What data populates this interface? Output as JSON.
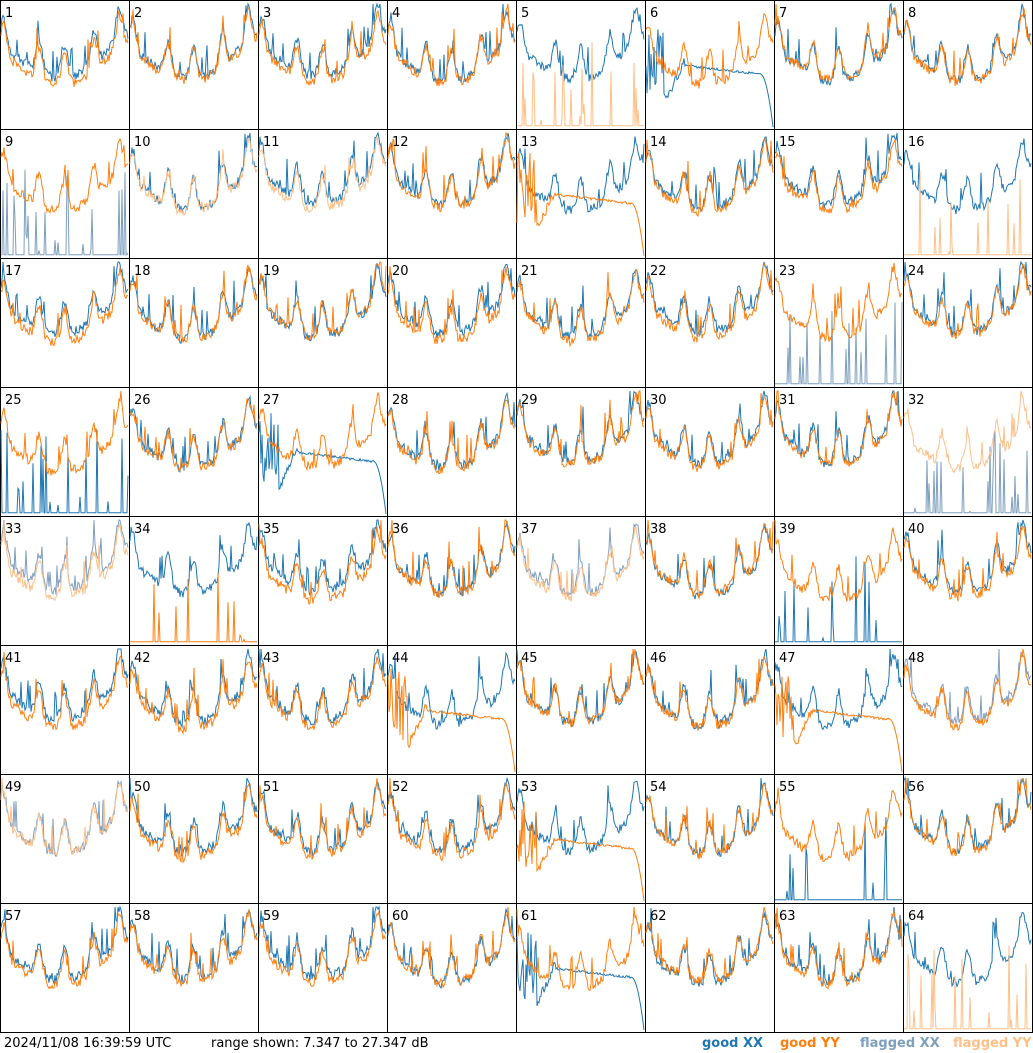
{
  "footer": {
    "timestamp": "2024/11/08 16:39:59 UTC",
    "range_text": "range shown: 7.347 to 27.347 dB",
    "legend": {
      "good_xx": "good XX",
      "good_yy": "good YY",
      "flagged_xx": "flagged XX",
      "flagged_yy": "flagged YY"
    }
  },
  "colors": {
    "good_xx": "#1f77b4",
    "good_yy": "#ff7f0e",
    "flagged_xx": "#7f9fbf",
    "flagged_yy": "#ffbf87",
    "frame": "#000000"
  },
  "chart_data": {
    "type": "line",
    "layout": "8x8 small multiples",
    "y_range_db": [
      7.347,
      27.347
    ],
    "series_names": [
      "XX",
      "YY"
    ],
    "panels": [
      {
        "id": 1,
        "xx": "good",
        "yy": "good",
        "xx_shape": "normal",
        "yy_shape": "normal"
      },
      {
        "id": 2,
        "xx": "good",
        "yy": "good",
        "xx_shape": "normal",
        "yy_shape": "normal"
      },
      {
        "id": 3,
        "xx": "good",
        "yy": "good",
        "xx_shape": "normal",
        "yy_shape": "normal"
      },
      {
        "id": 4,
        "xx": "good",
        "yy": "good",
        "xx_shape": "normal",
        "yy_shape": "normal"
      },
      {
        "id": 5,
        "xx": "good",
        "yy": "flagged",
        "xx_shape": "normal",
        "yy_shape": "spikes"
      },
      {
        "id": 6,
        "xx": "good",
        "yy": "good",
        "xx_shape": "rolloff",
        "yy_shape": "normal"
      },
      {
        "id": 7,
        "xx": "good",
        "yy": "good",
        "xx_shape": "normal",
        "yy_shape": "normal"
      },
      {
        "id": 8,
        "xx": "good",
        "yy": "good",
        "xx_shape": "normal",
        "yy_shape": "normal"
      },
      {
        "id": 9,
        "xx": "flagged",
        "yy": "good",
        "xx_shape": "spikes",
        "yy_shape": "normal"
      },
      {
        "id": 10,
        "xx": "good",
        "yy": "flagged",
        "xx_shape": "normal",
        "yy_shape": "normal"
      },
      {
        "id": 11,
        "xx": "good",
        "yy": "flagged",
        "xx_shape": "normal",
        "yy_shape": "normal"
      },
      {
        "id": 12,
        "xx": "good",
        "yy": "good",
        "xx_shape": "normal",
        "yy_shape": "normal"
      },
      {
        "id": 13,
        "xx": "good",
        "yy": "good",
        "xx_shape": "normal",
        "yy_shape": "rolloff"
      },
      {
        "id": 14,
        "xx": "good",
        "yy": "good",
        "xx_shape": "normal",
        "yy_shape": "normal"
      },
      {
        "id": 15,
        "xx": "good",
        "yy": "good",
        "xx_shape": "normal",
        "yy_shape": "normal"
      },
      {
        "id": 16,
        "xx": "good",
        "yy": "flagged",
        "xx_shape": "normal",
        "yy_shape": "spikes"
      },
      {
        "id": 17,
        "xx": "good",
        "yy": "good",
        "xx_shape": "normal",
        "yy_shape": "normal"
      },
      {
        "id": 18,
        "xx": "good",
        "yy": "good",
        "xx_shape": "normal",
        "yy_shape": "normal"
      },
      {
        "id": 19,
        "xx": "good",
        "yy": "good",
        "xx_shape": "normal",
        "yy_shape": "normal"
      },
      {
        "id": 20,
        "xx": "good",
        "yy": "good",
        "xx_shape": "normal",
        "yy_shape": "normal"
      },
      {
        "id": 21,
        "xx": "good",
        "yy": "good",
        "xx_shape": "normal",
        "yy_shape": "normal"
      },
      {
        "id": 22,
        "xx": "good",
        "yy": "good",
        "xx_shape": "normal",
        "yy_shape": "normal"
      },
      {
        "id": 23,
        "xx": "flagged",
        "yy": "good",
        "xx_shape": "spikes",
        "yy_shape": "normal"
      },
      {
        "id": 24,
        "xx": "good",
        "yy": "good",
        "xx_shape": "normal",
        "yy_shape": "normal"
      },
      {
        "id": 25,
        "xx": "good",
        "yy": "good",
        "xx_shape": "spikes",
        "yy_shape": "normal"
      },
      {
        "id": 26,
        "xx": "good",
        "yy": "good",
        "xx_shape": "normal",
        "yy_shape": "normal"
      },
      {
        "id": 27,
        "xx": "good",
        "yy": "good",
        "xx_shape": "rolloff",
        "yy_shape": "normal"
      },
      {
        "id": 28,
        "xx": "good",
        "yy": "good",
        "xx_shape": "normal",
        "yy_shape": "normal"
      },
      {
        "id": 29,
        "xx": "good",
        "yy": "good",
        "xx_shape": "normal",
        "yy_shape": "normal"
      },
      {
        "id": 30,
        "xx": "good",
        "yy": "good",
        "xx_shape": "normal",
        "yy_shape": "normal"
      },
      {
        "id": 31,
        "xx": "good",
        "yy": "good",
        "xx_shape": "normal",
        "yy_shape": "normal"
      },
      {
        "id": 32,
        "xx": "flagged",
        "yy": "flagged",
        "xx_shape": "spikes",
        "yy_shape": "normal"
      },
      {
        "id": 33,
        "xx": "flagged",
        "yy": "flagged",
        "xx_shape": "normal",
        "yy_shape": "normal"
      },
      {
        "id": 34,
        "xx": "good",
        "yy": "good",
        "xx_shape": "normal",
        "yy_shape": "spikes"
      },
      {
        "id": 35,
        "xx": "good",
        "yy": "good",
        "xx_shape": "normal",
        "yy_shape": "normal"
      },
      {
        "id": 36,
        "xx": "good",
        "yy": "good",
        "xx_shape": "normal",
        "yy_shape": "normal"
      },
      {
        "id": 37,
        "xx": "flagged",
        "yy": "flagged",
        "xx_shape": "normal",
        "yy_shape": "normal"
      },
      {
        "id": 38,
        "xx": "good",
        "yy": "good",
        "xx_shape": "normal",
        "yy_shape": "normal"
      },
      {
        "id": 39,
        "xx": "good",
        "yy": "good",
        "xx_shape": "spikes",
        "yy_shape": "normal"
      },
      {
        "id": 40,
        "xx": "good",
        "yy": "good",
        "xx_shape": "normal",
        "yy_shape": "normal"
      },
      {
        "id": 41,
        "xx": "good",
        "yy": "good",
        "xx_shape": "normal",
        "yy_shape": "normal"
      },
      {
        "id": 42,
        "xx": "good",
        "yy": "good",
        "xx_shape": "normal",
        "yy_shape": "normal"
      },
      {
        "id": 43,
        "xx": "good",
        "yy": "good",
        "xx_shape": "normal",
        "yy_shape": "normal"
      },
      {
        "id": 44,
        "xx": "good",
        "yy": "good",
        "xx_shape": "normal",
        "yy_shape": "rolloff"
      },
      {
        "id": 45,
        "xx": "good",
        "yy": "good",
        "xx_shape": "normal",
        "yy_shape": "normal"
      },
      {
        "id": 46,
        "xx": "good",
        "yy": "good",
        "xx_shape": "normal",
        "yy_shape": "normal"
      },
      {
        "id": 47,
        "xx": "good",
        "yy": "good",
        "xx_shape": "normal",
        "yy_shape": "rolloff"
      },
      {
        "id": 48,
        "xx": "flagged",
        "yy": "good",
        "xx_shape": "normal",
        "yy_shape": "normal"
      },
      {
        "id": 49,
        "xx": "flagged",
        "yy": "flagged",
        "xx_shape": "normal",
        "yy_shape": "normal"
      },
      {
        "id": 50,
        "xx": "good",
        "yy": "good",
        "xx_shape": "normal",
        "yy_shape": "normal"
      },
      {
        "id": 51,
        "xx": "good",
        "yy": "good",
        "xx_shape": "normal",
        "yy_shape": "normal"
      },
      {
        "id": 52,
        "xx": "good",
        "yy": "good",
        "xx_shape": "normal",
        "yy_shape": "normal"
      },
      {
        "id": 53,
        "xx": "good",
        "yy": "good",
        "xx_shape": "normal",
        "yy_shape": "rolloff"
      },
      {
        "id": 54,
        "xx": "good",
        "yy": "good",
        "xx_shape": "normal",
        "yy_shape": "normal"
      },
      {
        "id": 55,
        "xx": "good",
        "yy": "good",
        "xx_shape": "spikes",
        "yy_shape": "normal"
      },
      {
        "id": 56,
        "xx": "good",
        "yy": "good",
        "xx_shape": "normal",
        "yy_shape": "normal"
      },
      {
        "id": 57,
        "xx": "good",
        "yy": "good",
        "xx_shape": "normal",
        "yy_shape": "normal"
      },
      {
        "id": 58,
        "xx": "good",
        "yy": "good",
        "xx_shape": "normal",
        "yy_shape": "normal"
      },
      {
        "id": 59,
        "xx": "good",
        "yy": "good",
        "xx_shape": "normal",
        "yy_shape": "normal"
      },
      {
        "id": 60,
        "xx": "good",
        "yy": "good",
        "xx_shape": "normal",
        "yy_shape": "normal"
      },
      {
        "id": 61,
        "xx": "good",
        "yy": "good",
        "xx_shape": "rolloff",
        "yy_shape": "normal"
      },
      {
        "id": 62,
        "xx": "good",
        "yy": "good",
        "xx_shape": "normal",
        "yy_shape": "normal"
      },
      {
        "id": 63,
        "xx": "good",
        "yy": "good",
        "xx_shape": "normal",
        "yy_shape": "normal"
      },
      {
        "id": 64,
        "xx": "good",
        "yy": "flagged",
        "xx_shape": "normal",
        "yy_shape": "spikes"
      }
    ]
  }
}
